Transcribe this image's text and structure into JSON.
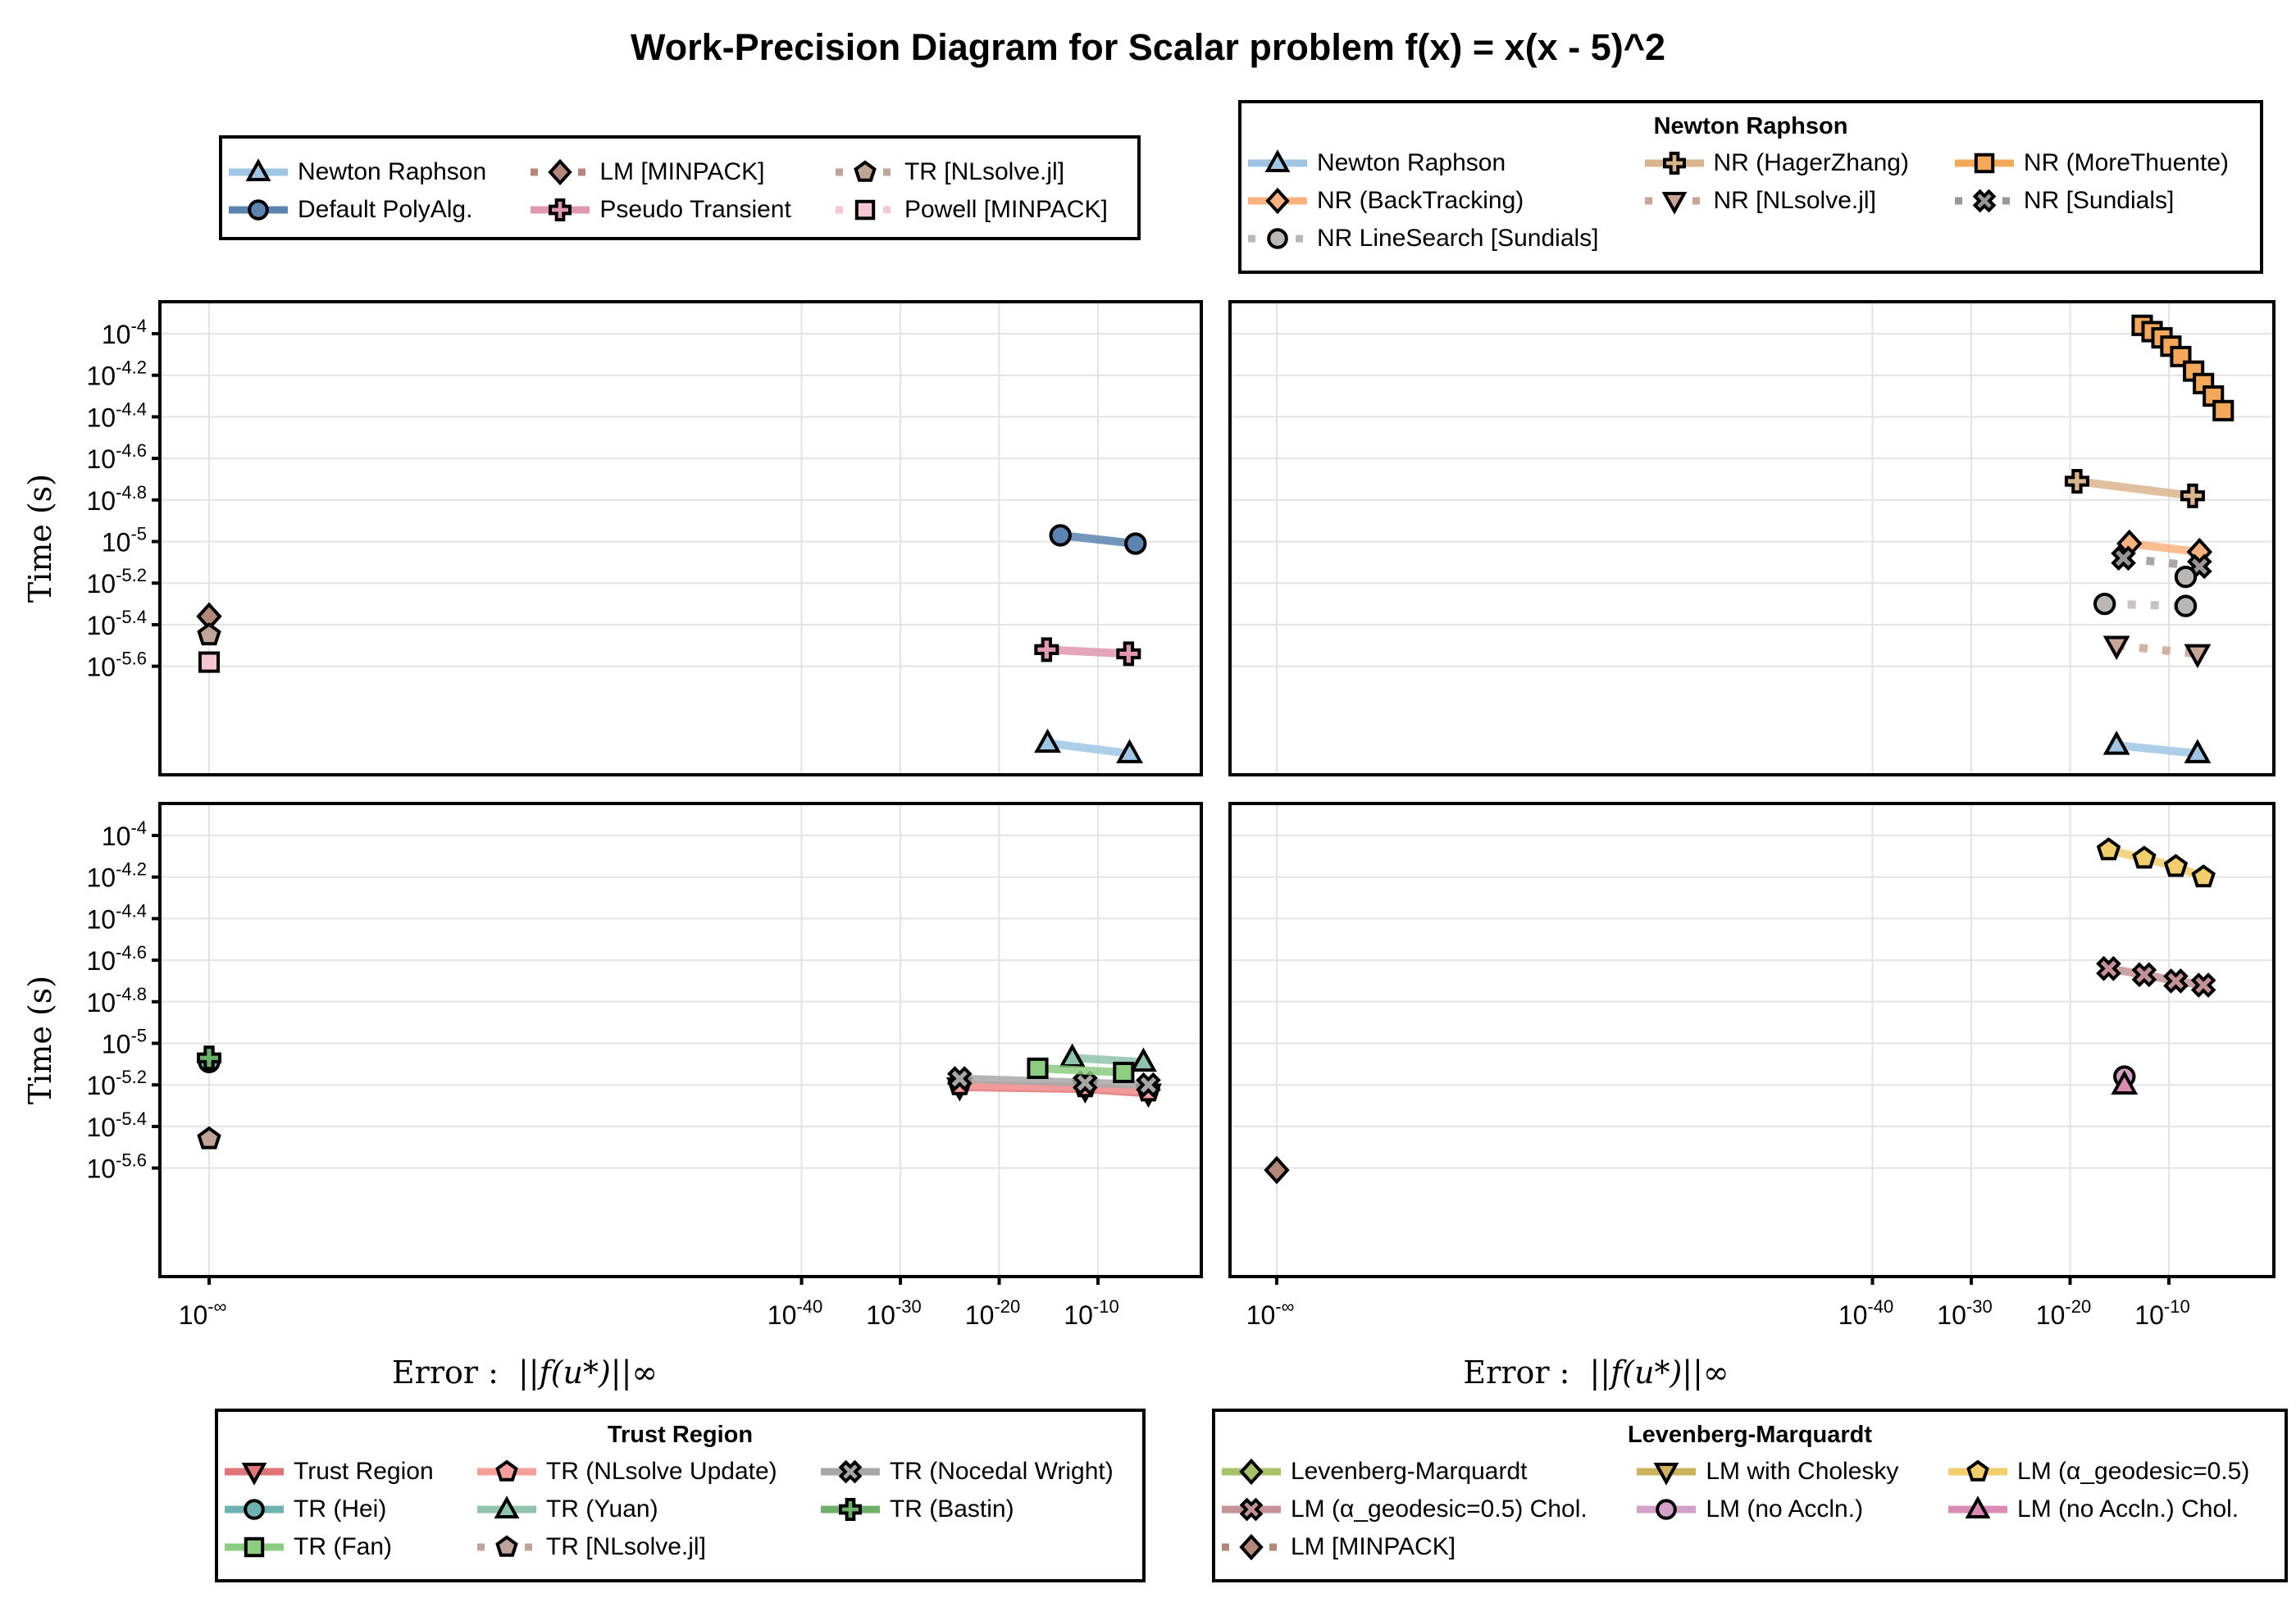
{
  "title": "Work-Precision Diagram for Scalar problem f(x) = x(x - 5)^2",
  "axes": {
    "ylabel": "Time (s)",
    "xlabel_prefix": "Error : ",
    "xlabel_math": "||f(u*)||∞",
    "yticks": [
      {
        "value": -4,
        "base": "10",
        "exp": "-4"
      },
      {
        "value": -4.2,
        "base": "10",
        "exp": "-4.2"
      },
      {
        "value": -4.4,
        "base": "10",
        "exp": "-4.4"
      },
      {
        "value": -4.6,
        "base": "10",
        "exp": "-4.6"
      },
      {
        "value": -4.8,
        "base": "10",
        "exp": "-4.8"
      },
      {
        "value": -5,
        "base": "10",
        "exp": "-5"
      },
      {
        "value": -5.2,
        "base": "10",
        "exp": "-5.2"
      },
      {
        "value": -5.4,
        "base": "10",
        "exp": "-5.4"
      },
      {
        "value": -5.6,
        "base": "10",
        "exp": "-5.6"
      }
    ],
    "xticks": [
      {
        "value": "-inf",
        "base": "10",
        "exp": "-∞"
      },
      {
        "value": -40,
        "base": "10",
        "exp": "-40"
      },
      {
        "value": -30,
        "base": "10",
        "exp": "-30"
      },
      {
        "value": -20,
        "base": "10",
        "exp": "-20"
      },
      {
        "value": -10,
        "base": "10",
        "exp": "-10"
      }
    ]
  },
  "legends": [
    {
      "id": "legend-general",
      "title": "",
      "entries": [
        {
          "label": "Newton Raphson",
          "series": "nr"
        },
        {
          "label": "LM [MINPACK]",
          "series": "lm_minpack"
        },
        {
          "label": "TR [NLsolve.jl]",
          "series": "tr_nlsolve"
        },
        {
          "label": "Default PolyAlg.",
          "series": "polyalg"
        },
        {
          "label": "Pseudo Transient",
          "series": "pseudo"
        },
        {
          "label": "Powell [MINPACK]",
          "series": "powell"
        }
      ]
    },
    {
      "id": "legend-newton",
      "title": "Newton Raphson",
      "entries": [
        {
          "label": "Newton Raphson",
          "series": "nr"
        },
        {
          "label": "NR (HagerZhang)",
          "series": "nr_hz"
        },
        {
          "label": "NR (MoreThuente)",
          "series": "nr_mt"
        },
        {
          "label": "NR (BackTracking)",
          "series": "nr_bt"
        },
        {
          "label": "NR [NLsolve.jl]",
          "series": "nr_nlsolve"
        },
        {
          "label": "NR [Sundials]",
          "series": "nr_sundials"
        },
        {
          "label": "NR LineSearch [Sundials]",
          "series": "nr_ls_sundials"
        }
      ]
    },
    {
      "id": "legend-trust",
      "title": "Trust Region",
      "entries": [
        {
          "label": "Trust Region",
          "series": "tr"
        },
        {
          "label": "TR (NLsolve Update)",
          "series": "tr_nlupd"
        },
        {
          "label": "TR (Nocedal Wright)",
          "series": "tr_nw"
        },
        {
          "label": "TR (Hei)",
          "series": "tr_hei"
        },
        {
          "label": "TR (Yuan)",
          "series": "tr_yuan"
        },
        {
          "label": "TR (Bastin)",
          "series": "tr_bastin"
        },
        {
          "label": "TR (Fan)",
          "series": "tr_fan"
        },
        {
          "label": "TR [NLsolve.jl]",
          "series": "tr_nlsolve"
        }
      ]
    },
    {
      "id": "legend-lm",
      "title": "Levenberg-Marquardt",
      "entries": [
        {
          "label": "Levenberg-Marquardt",
          "series": "lm"
        },
        {
          "label": "LM with Cholesky",
          "series": "lm_chol"
        },
        {
          "label": "LM (α_geodesic=0.5)",
          "series": "lm_geo"
        },
        {
          "label": "LM (α_geodesic=0.5) Chol.",
          "series": "lm_geo_chol"
        },
        {
          "label": "LM (no Accln.)",
          "series": "lm_noacc"
        },
        {
          "label": "LM (no Accln.) Chol.",
          "series": "lm_noacc_chol"
        },
        {
          "label": "LM [MINPACK]",
          "series": "lm_minpack"
        }
      ]
    }
  ],
  "series_styles": {
    "nr": {
      "color": "#9ec6e4",
      "marker": "triangle",
      "line": "solid"
    },
    "polyalg": {
      "color": "#5b84b1",
      "marker": "circle",
      "line": "solid"
    },
    "lm_minpack": {
      "color": "#b3887a",
      "marker": "diamond",
      "line": "dotted"
    },
    "pseudo": {
      "color": "#e097b0",
      "marker": "cross",
      "line": "solid"
    },
    "tr_nlsolve": {
      "color": "#bfa499",
      "marker": "pentagon",
      "line": "dotted"
    },
    "powell": {
      "color": "#f6c6d4",
      "marker": "square",
      "line": "dotted"
    },
    "nr_hz": {
      "color": "#d9b48c",
      "marker": "cross",
      "line": "solid"
    },
    "nr_mt": {
      "color": "#f6a85a",
      "marker": "square",
      "line": "solid"
    },
    "nr_bt": {
      "color": "#f9b27d",
      "marker": "diamond",
      "line": "solid"
    },
    "nr_nlsolve": {
      "color": "#c9a595",
      "marker": "triangle-down",
      "line": "dotted"
    },
    "nr_sundials": {
      "color": "#9b9696",
      "marker": "x",
      "line": "dotted"
    },
    "nr_ls_sundials": {
      "color": "#bcb7b7",
      "marker": "circle",
      "line": "dotted"
    },
    "tr": {
      "color": "#e07478",
      "marker": "triangle-down",
      "line": "solid"
    },
    "tr_nlupd": {
      "color": "#f59e9b",
      "marker": "pentagon",
      "line": "solid"
    },
    "tr_nw": {
      "color": "#a7a7a7",
      "marker": "x",
      "line": "solid"
    },
    "tr_hei": {
      "color": "#6fb0b1",
      "marker": "circle",
      "line": "solid"
    },
    "tr_yuan": {
      "color": "#8fc3ad",
      "marker": "triangle",
      "line": "solid"
    },
    "tr_bastin": {
      "color": "#6cb06a",
      "marker": "cross",
      "line": "solid"
    },
    "tr_fan": {
      "color": "#8ccd81",
      "marker": "square",
      "line": "solid"
    },
    "lm": {
      "color": "#a8c26a",
      "marker": "diamond",
      "line": "solid"
    },
    "lm_chol": {
      "color": "#ccb25b",
      "marker": "triangle-down",
      "line": "solid"
    },
    "lm_geo": {
      "color": "#f1cd6c",
      "marker": "pentagon",
      "line": "solid"
    },
    "lm_geo_chol": {
      "color": "#c49297",
      "marker": "x",
      "line": "solid"
    },
    "lm_noacc": {
      "color": "#d3a1c8",
      "marker": "circle",
      "line": "solid"
    },
    "lm_noacc_chol": {
      "color": "#dc8cb4",
      "marker": "triangle",
      "line": "solid"
    }
  },
  "chart_data": [
    {
      "type": "scatter",
      "panel": "top-left",
      "xlabel": "",
      "ylabel": "Time (s)",
      "xscale": "log10",
      "yscale": "log10",
      "grid": true,
      "legend": "top-left",
      "series": [
        {
          "id": "nr",
          "name": "Newton Raphson",
          "x_log10": [
            -15.1,
            -6.8
          ],
          "y_log10": [
            -5.97,
            -6.02
          ]
        },
        {
          "id": "polyalg",
          "name": "Default PolyAlg.",
          "x_log10": [
            -13.8,
            -6.2
          ],
          "y_log10": [
            -4.97,
            -5.01
          ]
        },
        {
          "id": "pseudo",
          "name": "Pseudo Transient",
          "x_log10": [
            -15.2,
            -6.9
          ],
          "y_log10": [
            -5.52,
            -5.54
          ]
        },
        {
          "id": "lm_minpack",
          "name": "LM [MINPACK]",
          "x_log10": [
            "-inf"
          ],
          "y_log10": [
            -5.36
          ]
        },
        {
          "id": "tr_nlsolve",
          "name": "TR [NLsolve.jl]",
          "x_log10": [
            "-inf"
          ],
          "y_log10": [
            -5.45
          ]
        },
        {
          "id": "powell",
          "name": "Powell [MINPACK]",
          "x_log10": [
            "-inf"
          ],
          "y_log10": [
            -5.58
          ]
        }
      ]
    },
    {
      "type": "scatter",
      "panel": "top-right",
      "xlabel": "",
      "ylabel": "",
      "xscale": "log10",
      "yscale": "log10",
      "grid": true,
      "legend": "top-right",
      "series": [
        {
          "id": "nr",
          "name": "Newton Raphson",
          "x_log10": [
            -15.3,
            -7.1
          ],
          "y_log10": [
            -5.98,
            -6.02
          ]
        },
        {
          "id": "nr_hz",
          "name": "NR (HagerZhang)",
          "x_log10": [
            -19.3,
            -7.6
          ],
          "y_log10": [
            -4.71,
            -4.78
          ]
        },
        {
          "id": "nr_mt",
          "name": "NR (MoreThuente)",
          "x_log10": [
            -12.7,
            -11.7,
            -10.7,
            -9.8,
            -8.8,
            -7.5,
            -6.5,
            -5.5,
            -4.5
          ],
          "y_log10": [
            -3.96,
            -3.99,
            -4.02,
            -4.06,
            -4.11,
            -4.18,
            -4.24,
            -4.3,
            -4.37
          ]
        },
        {
          "id": "nr_bt",
          "name": "NR (BackTracking)",
          "x_log10": [
            -14.0,
            -6.9
          ],
          "y_log10": [
            -5.01,
            -5.05
          ]
        },
        {
          "id": "nr_nlsolve",
          "name": "NR [NLsolve.jl]",
          "x_log10": [
            -15.3,
            -7.1
          ],
          "y_log10": [
            -5.5,
            -5.54
          ]
        },
        {
          "id": "nr_sundials",
          "name": "NR [Sundials]",
          "x_log10": [
            -14.6,
            -6.9
          ],
          "y_log10": [
            -5.08,
            -5.12
          ]
        },
        {
          "id": "nr_ls_sundials",
          "name": "NR LineSearch [Sundials]",
          "x_log10": [
            -16.5,
            -8.3,
            -8.3
          ],
          "y_log10": [
            -5.3,
            -5.31,
            -5.17
          ]
        }
      ]
    },
    {
      "type": "scatter",
      "panel": "bottom-left",
      "xlabel": "Error : ||f(u*)||∞",
      "ylabel": "Time (s)",
      "xscale": "log10",
      "yscale": "log10",
      "grid": true,
      "legend": "bottom-left",
      "series": [
        {
          "id": "tr",
          "name": "Trust Region",
          "x_log10": [
            -24.0,
            -11.3,
            -4.9
          ],
          "y_log10": [
            -5.21,
            -5.22,
            -5.24
          ]
        },
        {
          "id": "tr_nlupd",
          "name": "TR (NLsolve Update)",
          "x_log10": [
            -24.0,
            -11.3,
            -4.9
          ],
          "y_log10": [
            -5.2,
            -5.21,
            -5.23
          ]
        },
        {
          "id": "tr_nw",
          "name": "TR (Nocedal Wright)",
          "x_log10": [
            -24.0,
            -11.3,
            -4.9
          ],
          "y_log10": [
            -5.17,
            -5.19,
            -5.2
          ]
        },
        {
          "id": "tr_hei",
          "name": "TR (Hei)",
          "x_log10": [
            "-inf"
          ],
          "y_log10": [
            -5.09
          ]
        },
        {
          "id": "tr_yuan",
          "name": "TR (Yuan)",
          "x_log10": [
            -12.6,
            -5.4
          ],
          "y_log10": [
            -5.07,
            -5.09
          ]
        },
        {
          "id": "tr_bastin",
          "name": "TR (Bastin)",
          "x_log10": [
            "-inf"
          ],
          "y_log10": [
            -5.07
          ]
        },
        {
          "id": "tr_fan",
          "name": "TR (Fan)",
          "x_log10": [
            -16.1,
            -7.4
          ],
          "y_log10": [
            -5.12,
            -5.14
          ]
        },
        {
          "id": "tr_nlsolve",
          "name": "TR [NLsolve.jl]",
          "x_log10": [
            "-inf"
          ],
          "y_log10": [
            -5.46
          ]
        }
      ]
    },
    {
      "type": "scatter",
      "panel": "bottom-right",
      "xlabel": "Error : ||f(u*)||∞",
      "ylabel": "",
      "xscale": "log10",
      "yscale": "log10",
      "grid": true,
      "legend": "bottom-right",
      "series": [
        {
          "id": "lm",
          "name": "Levenberg-Marquardt",
          "x_log10": [],
          "y_log10": []
        },
        {
          "id": "lm_chol",
          "name": "LM with Cholesky",
          "x_log10": [],
          "y_log10": []
        },
        {
          "id": "lm_geo",
          "name": "LM (α_geodesic=0.5)",
          "x_log10": [
            -16.1,
            -12.5,
            -9.3,
            -6.5
          ],
          "y_log10": [
            -4.07,
            -4.11,
            -4.15,
            -4.2
          ]
        },
        {
          "id": "lm_geo_chol",
          "name": "LM (α_geodesic=0.5) Chol.",
          "x_log10": [
            -16.1,
            -12.5,
            -9.3,
            -6.5
          ],
          "y_log10": [
            -4.64,
            -4.67,
            -4.7,
            -4.72
          ]
        },
        {
          "id": "lm_noacc",
          "name": "LM (no Accln.)",
          "x_log10": [
            -14.5
          ],
          "y_log10": [
            -5.16
          ]
        },
        {
          "id": "lm_noacc_chol",
          "name": "LM (no Accln.) Chol.",
          "x_log10": [
            -14.5
          ],
          "y_log10": [
            -5.2
          ]
        },
        {
          "id": "lm_minpack",
          "name": "LM [MINPACK]",
          "x_log10": [
            "-inf"
          ],
          "y_log10": [
            -5.61
          ]
        }
      ]
    }
  ]
}
